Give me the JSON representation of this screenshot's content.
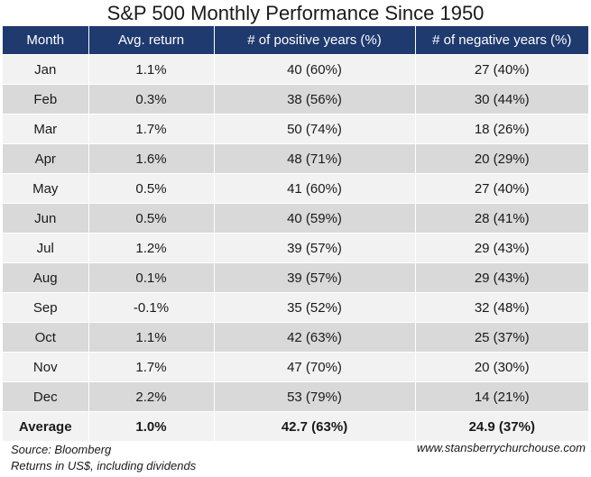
{
  "chart_data": {
    "type": "table",
    "title": "S&P 500 Monthly Performance Since 1950",
    "columns": [
      "Month",
      "Avg. return",
      "# of positive years (%)",
      "# of negative years (%)"
    ],
    "rows": [
      [
        "Jan",
        "1.1%",
        "40 (60%)",
        "27 (40%)"
      ],
      [
        "Feb",
        "0.3%",
        "38 (56%)",
        "30 (44%)"
      ],
      [
        "Mar",
        "1.7%",
        "50 (74%)",
        "18 (26%)"
      ],
      [
        "Apr",
        "1.6%",
        "48 (71%)",
        "20 (29%)"
      ],
      [
        "May",
        "0.5%",
        "41 (60%)",
        "27 (40%)"
      ],
      [
        "Jun",
        "0.5%",
        "40 (59%)",
        "28 (41%)"
      ],
      [
        "Jul",
        "1.2%",
        "39 (57%)",
        "29 (43%)"
      ],
      [
        "Aug",
        "0.1%",
        "39 (57%)",
        "29 (43%)"
      ],
      [
        "Sep",
        "-0.1%",
        "35 (52%)",
        "32 (48%)"
      ],
      [
        "Oct",
        "1.1%",
        "42 (63%)",
        "25 (37%)"
      ],
      [
        "Nov",
        "1.7%",
        "47 (70%)",
        "20 (30%)"
      ],
      [
        "Dec",
        "2.2%",
        "53 (79%)",
        "14 (21%)"
      ]
    ],
    "average_row": [
      "Average",
      "1.0%",
      "42.7 (63%)",
      "24.9 (37%)"
    ]
  },
  "footer": {
    "source": "Source: Bloomberg",
    "note": "Returns in US$, including dividends",
    "website": "www.stansberrychurchouse.com"
  },
  "colors": {
    "header_bg": "#1f3a6e",
    "row_light": "#f2f2f2",
    "row_dark": "#d9d9d9"
  }
}
